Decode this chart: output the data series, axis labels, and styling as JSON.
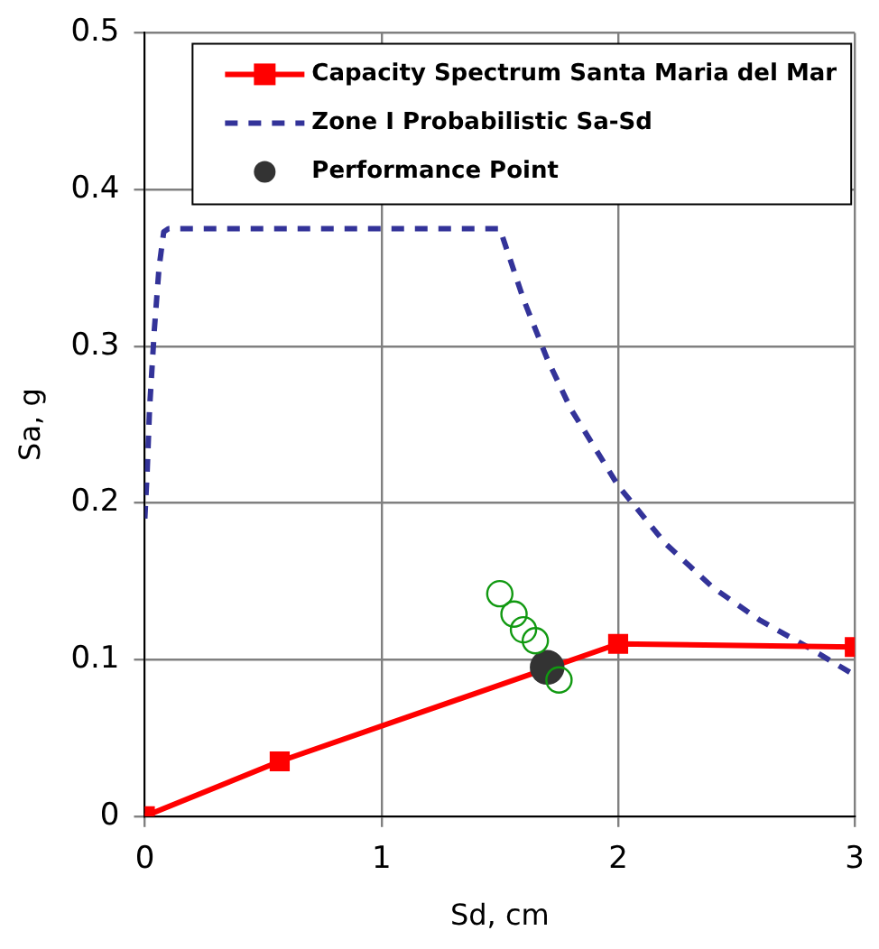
{
  "chart_data": {
    "type": "line",
    "xlabel": "Sd, cm",
    "ylabel": "Sa, g",
    "xlim": [
      0,
      3
    ],
    "ylim": [
      0,
      0.5
    ],
    "xticks": [
      0,
      1,
      2,
      3
    ],
    "yticks": [
      0,
      0.1,
      0.2,
      0.3,
      0.4,
      0.5
    ],
    "grid": true,
    "legend": "top right",
    "series": [
      {
        "name": "Capacity Spectrum Santa Maria del Mar",
        "type": "line",
        "color": "#ff0000",
        "marker": "square",
        "line_style": "solid",
        "x": [
          0,
          0.57,
          2.0,
          3.0
        ],
        "values": [
          0,
          0.035,
          0.11,
          0.108
        ]
      },
      {
        "name": "Zone I Probabilistic Sa-Sd",
        "type": "line",
        "color": "#333399",
        "marker": "none",
        "line_style": "dashed",
        "x": [
          0,
          0.01,
          0.02,
          0.04,
          0.06,
          0.08,
          0.1,
          1.5,
          1.6,
          1.7,
          1.8,
          2.0,
          2.2,
          2.4,
          2.6,
          2.8,
          3.0
        ],
        "values": [
          0.19,
          0.22,
          0.26,
          0.31,
          0.35,
          0.373,
          0.375,
          0.375,
          0.33,
          0.292,
          0.26,
          0.211,
          0.174,
          0.146,
          0.125,
          0.108,
          0.09
        ]
      },
      {
        "type": "scatter",
        "color": "#119911",
        "marker": "circle",
        "x": [
          1.5,
          1.56,
          1.6,
          1.65,
          1.75
        ],
        "values": [
          0.142,
          0.129,
          0.119,
          0.112,
          0.087
        ]
      },
      {
        "name": "Performance Point",
        "type": "scatter",
        "color": "#333333",
        "marker": "circle",
        "x": [
          1.7
        ],
        "values": [
          0.095
        ]
      }
    ]
  }
}
